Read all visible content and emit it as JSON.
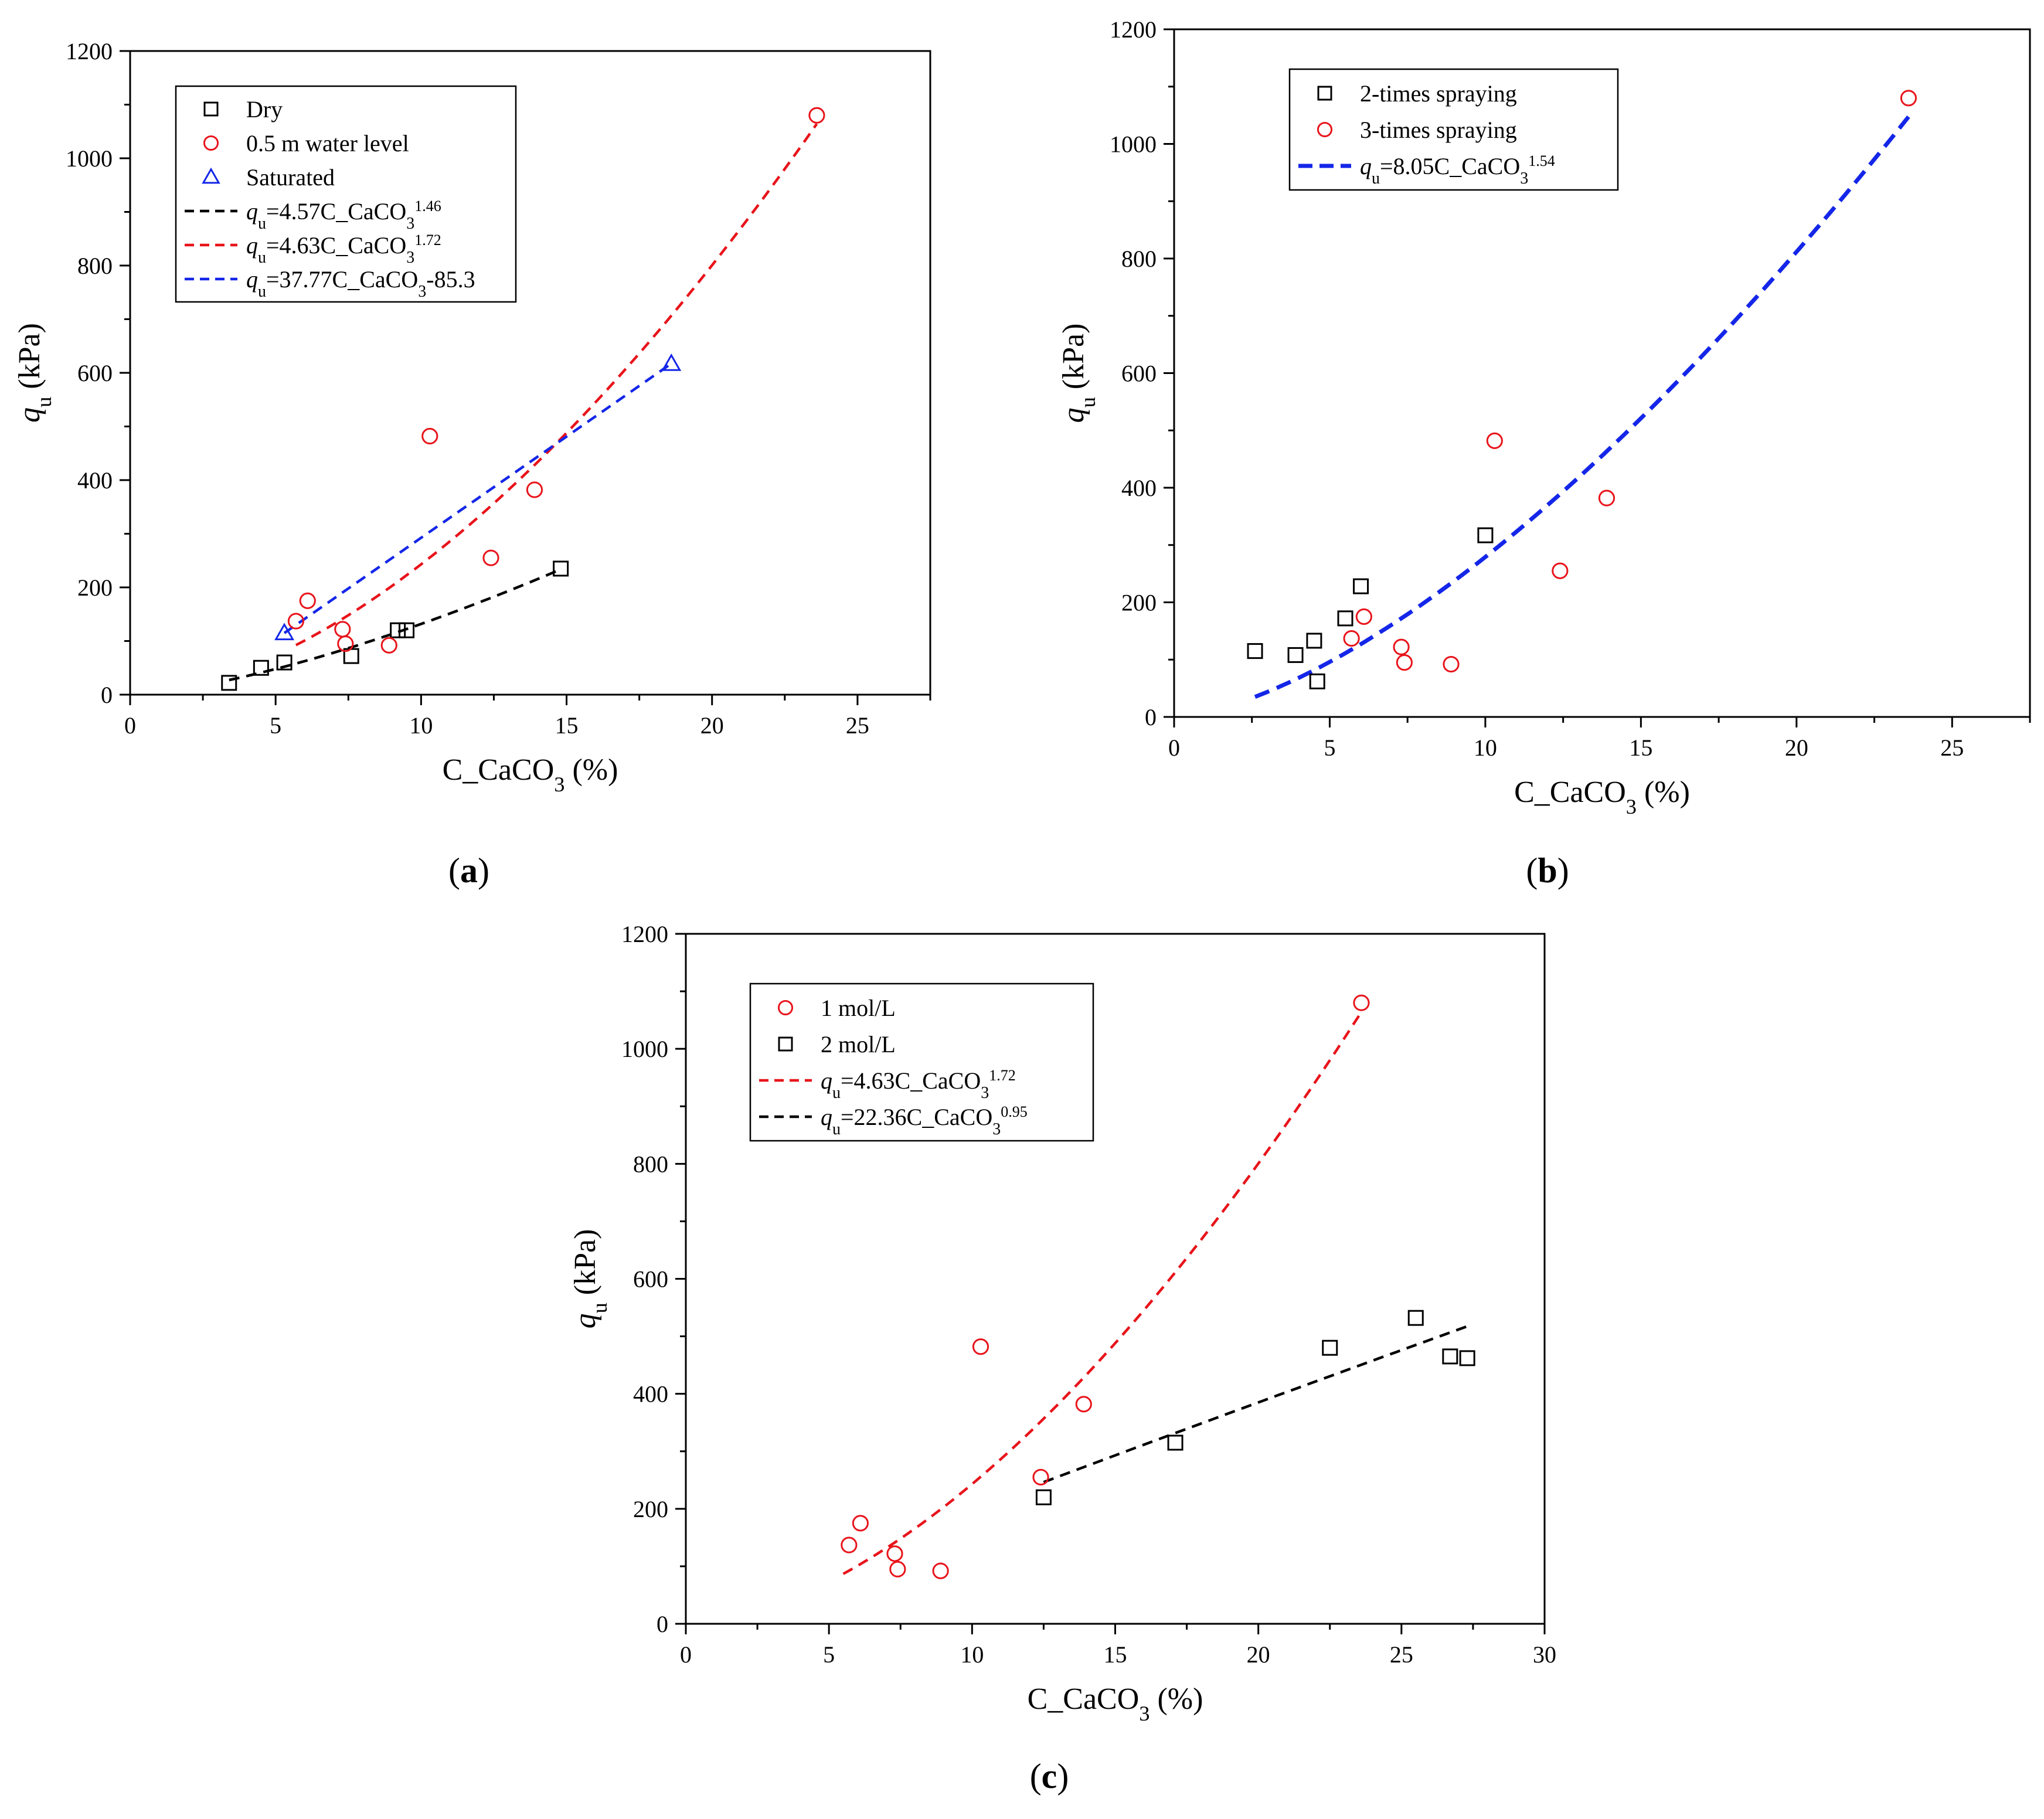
{
  "chart_data": [
    {
      "type": "scatter",
      "panel_label": "a",
      "title": "",
      "xlabel": "C_CaCO",
      "xlabel_sub": "3",
      "xlabel_suffix": " (%)",
      "ylabel": "q",
      "ylabel_sub": "u",
      "ylabel_suffix": " (kPa)",
      "xlim": [
        0,
        27.5
      ],
      "ylim": [
        0,
        1200
      ],
      "xticks": [
        0,
        5,
        10,
        15,
        20,
        25
      ],
      "yticks": [
        0,
        200,
        400,
        600,
        800,
        1000,
        1200
      ],
      "legend_position": "top-left",
      "series": [
        {
          "name": "Dry",
          "kind": "points",
          "marker": "square",
          "color": "#000000",
          "points": [
            [
              3.4,
              22
            ],
            [
              4.5,
              50
            ],
            [
              5.3,
              60
            ],
            [
              7.6,
              72
            ],
            [
              9.2,
              120
            ],
            [
              9.5,
              120
            ],
            [
              14.8,
              235
            ]
          ]
        },
        {
          "name": "0.5 m water level",
          "kind": "points",
          "marker": "circle",
          "color": "#e8141b",
          "points": [
            [
              5.7,
              137
            ],
            [
              6.1,
              175
            ],
            [
              7.3,
              122
            ],
            [
              7.4,
              95
            ],
            [
              8.9,
              92
            ],
            [
              10.3,
              482
            ],
            [
              12.4,
              255
            ],
            [
              13.9,
              382
            ],
            [
              23.6,
              1080
            ]
          ]
        },
        {
          "name": "Saturated",
          "kind": "points",
          "marker": "triangle",
          "color": "#1426e8",
          "points": [
            [
              5.3,
              115
            ],
            [
              18.6,
              617
            ]
          ]
        },
        {
          "name": "fit-dry",
          "kind": "fit",
          "color": "#000000",
          "coef": 4.57,
          "exp": 1.46,
          "x_range": [
            3.4,
            14.8
          ],
          "legend": {
            "pre": "=4.57C_CaCO",
            "sub": "3",
            "sup": "1.46",
            "post": ""
          }
        },
        {
          "name": "fit-water",
          "kind": "fit",
          "color": "#e8141b",
          "coef": 4.63,
          "exp": 1.72,
          "x_range": [
            5.7,
            23.6
          ],
          "legend": {
            "pre": "=4.63C_CaCO",
            "sub": "3",
            "sup": "1.72",
            "post": ""
          }
        },
        {
          "name": "fit-saturated",
          "kind": "linear",
          "color": "#1426e8",
          "slope": 37.77,
          "intercept": -85.3,
          "x_range": [
            5.3,
            18.6
          ],
          "legend": {
            "pre": "=37.77C_CaCO",
            "sub": "3",
            "sup": "",
            "post": "-85.3"
          }
        }
      ]
    },
    {
      "type": "scatter",
      "panel_label": "b",
      "title": "",
      "xlabel": "C_CaCO",
      "xlabel_sub": "3",
      "xlabel_suffix": " (%)",
      "ylabel": "q",
      "ylabel_sub": "u",
      "ylabel_suffix": " (kPa)",
      "xlim": [
        0,
        27.5
      ],
      "ylim": [
        0,
        1200
      ],
      "xticks": [
        0,
        5,
        10,
        15,
        20,
        25
      ],
      "yticks": [
        0,
        200,
        400,
        600,
        800,
        1000,
        1200
      ],
      "legend_position": "top-left",
      "series": [
        {
          "name": "2-times spraying",
          "kind": "points",
          "marker": "square",
          "color": "#000000",
          "points": [
            [
              2.6,
              115
            ],
            [
              3.9,
              108
            ],
            [
              4.5,
              133
            ],
            [
              4.6,
              62
            ],
            [
              5.5,
              172
            ],
            [
              6.0,
              228
            ],
            [
              10.0,
              317
            ]
          ]
        },
        {
          "name": "3-times spraying",
          "kind": "points",
          "marker": "circle",
          "color": "#e8141b",
          "points": [
            [
              5.7,
              137
            ],
            [
              6.1,
              175
            ],
            [
              7.3,
              122
            ],
            [
              7.4,
              95
            ],
            [
              8.9,
              92
            ],
            [
              10.3,
              482
            ],
            [
              12.4,
              255
            ],
            [
              13.9,
              382
            ],
            [
              23.6,
              1080
            ]
          ]
        },
        {
          "name": "fit",
          "kind": "fit",
          "color": "#1426e8",
          "coef": 8.05,
          "exp": 1.54,
          "x_range": [
            2.6,
            23.6
          ],
          "thick": true,
          "legend": {
            "pre": "=8.05C_CaCO",
            "sub": "3",
            "sup": "1.54",
            "post": ""
          }
        }
      ]
    },
    {
      "type": "scatter",
      "panel_label": "c",
      "title": "",
      "xlabel": "C_CaCO",
      "xlabel_sub": "3",
      "xlabel_suffix": " (%)",
      "ylabel": "q",
      "ylabel_sub": "u",
      "ylabel_suffix": " (kPa)",
      "xlim": [
        0,
        30
      ],
      "ylim": [
        0,
        1200
      ],
      "xticks": [
        0,
        5,
        10,
        15,
        20,
        25,
        30
      ],
      "yticks": [
        0,
        200,
        400,
        600,
        800,
        1000,
        1200
      ],
      "legend_position": "top-left",
      "series": [
        {
          "name": "1 mol/L",
          "kind": "points",
          "marker": "circle",
          "color": "#e8141b",
          "points": [
            [
              5.7,
              137
            ],
            [
              6.1,
              175
            ],
            [
              7.3,
              122
            ],
            [
              7.4,
              95
            ],
            [
              8.9,
              92
            ],
            [
              10.3,
              482
            ],
            [
              12.4,
              255
            ],
            [
              13.9,
              382
            ],
            [
              23.6,
              1080
            ]
          ]
        },
        {
          "name": "2 mol/L",
          "kind": "points",
          "marker": "square",
          "color": "#000000",
          "points": [
            [
              12.5,
              220
            ],
            [
              17.1,
              315
            ],
            [
              22.5,
              480
            ],
            [
              25.5,
              532
            ],
            [
              26.7,
              465
            ],
            [
              27.3,
              462
            ]
          ]
        },
        {
          "name": "fit-1mol",
          "kind": "fit",
          "color": "#e8141b",
          "coef": 4.63,
          "exp": 1.72,
          "x_range": [
            5.5,
            23.6
          ],
          "legend": {
            "pre": "=4.63C_CaCO",
            "sub": "3",
            "sup": "1.72",
            "post": ""
          }
        },
        {
          "name": "fit-2mol",
          "kind": "fit",
          "color": "#000000",
          "coef": 22.36,
          "exp": 0.95,
          "x_range": [
            12.5,
            27.3
          ],
          "legend": {
            "pre": "=22.36C_CaCO",
            "sub": "3",
            "sup": "0.95",
            "post": ""
          }
        }
      ]
    }
  ]
}
